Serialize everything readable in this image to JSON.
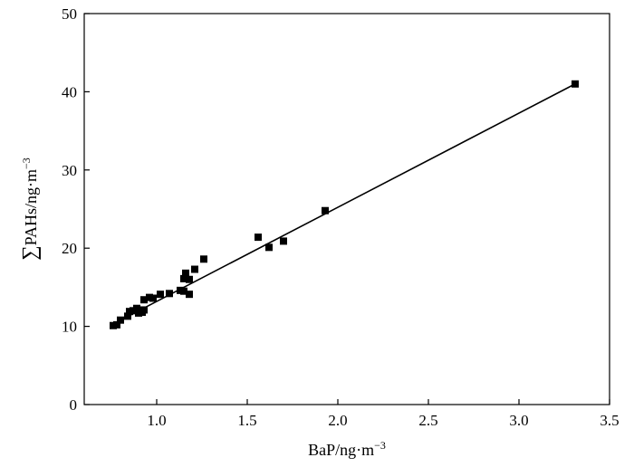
{
  "chart_data": {
    "type": "scatter",
    "title": "",
    "xlabel": {
      "base": "BaP/ng·m",
      "sup": "−3"
    },
    "ylabel": {
      "prefix": "∑",
      "base": "PAHs/ng·m",
      "sup": "−3"
    },
    "xlim": [
      0.6,
      3.5
    ],
    "ylim": [
      0,
      50
    ],
    "xticks": [
      {
        "value": 1.0,
        "label": "1.0"
      },
      {
        "value": 1.5,
        "label": "1.5"
      },
      {
        "value": 2.0,
        "label": "2.0"
      },
      {
        "value": 2.5,
        "label": "2.5"
      },
      {
        "value": 3.0,
        "label": "3.0"
      },
      {
        "value": 3.5,
        "label": "3.5"
      }
    ],
    "yticks": [
      {
        "value": 0,
        "label": "0"
      },
      {
        "value": 10,
        "label": "10"
      },
      {
        "value": 20,
        "label": "20"
      },
      {
        "value": 30,
        "label": "30"
      },
      {
        "value": 40,
        "label": "40"
      },
      {
        "value": 50,
        "label": "50"
      }
    ],
    "grid": false,
    "legend": "none",
    "marker": "square",
    "marker_color": "#000000",
    "series": [
      {
        "points": [
          [
            0.76,
            10.1
          ],
          [
            0.78,
            10.2
          ],
          [
            0.8,
            10.8
          ],
          [
            0.84,
            11.3
          ],
          [
            0.85,
            11.9
          ],
          [
            0.87,
            12.0
          ],
          [
            0.89,
            12.3
          ],
          [
            0.9,
            11.7
          ],
          [
            0.92,
            11.8
          ],
          [
            0.93,
            12.1
          ],
          [
            0.93,
            13.4
          ],
          [
            0.96,
            13.7
          ],
          [
            0.98,
            13.6
          ],
          [
            1.02,
            14.1
          ],
          [
            1.07,
            14.2
          ],
          [
            1.13,
            14.6
          ],
          [
            1.15,
            14.5
          ],
          [
            1.15,
            16.1
          ],
          [
            1.16,
            16.8
          ],
          [
            1.18,
            14.1
          ],
          [
            1.18,
            16.0
          ],
          [
            1.21,
            17.3
          ],
          [
            1.26,
            18.6
          ],
          [
            1.56,
            21.4
          ],
          [
            1.62,
            20.1
          ],
          [
            1.7,
            20.9
          ],
          [
            1.93,
            24.8
          ],
          [
            3.31,
            41.0
          ]
        ]
      }
    ],
    "fit_line": {
      "x": [
        0.76,
        3.31
      ],
      "y": [
        10.3,
        41.0
      ]
    }
  }
}
